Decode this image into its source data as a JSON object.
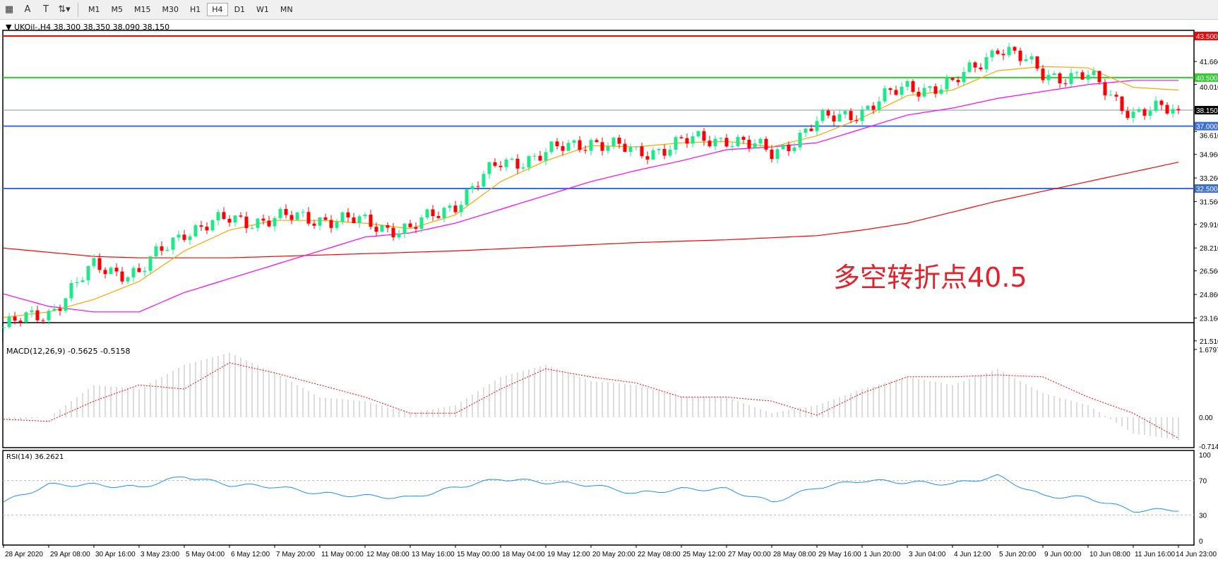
{
  "toolbar": {
    "tools": [
      {
        "icon": "grid-icon"
      },
      {
        "icon": "text-icon",
        "label": "A"
      },
      {
        "icon": "text-label-icon",
        "label": "T"
      },
      {
        "icon": "arrows-icon"
      }
    ],
    "timeframes": [
      "M1",
      "M5",
      "M15",
      "M30",
      "H1",
      "H4",
      "D1",
      "W1",
      "MN"
    ],
    "active_timeframe": "H4"
  },
  "header": {
    "symbol": "UKOil-,H4",
    "ohlc": "38.300 38.350 38.090 38.150"
  },
  "annotation": "多空转折点40.5",
  "macd": {
    "label": "MACD(12,26,9) -0.5625 -0.5158",
    "axis": [
      "1.6797",
      "0.00",
      "-0.7149"
    ]
  },
  "rsi": {
    "label": "RSI(14) 36.2621",
    "axis": [
      "100",
      "70",
      "30",
      "0"
    ]
  },
  "price_axis": [
    "41.660",
    "40.010",
    "36.610",
    "34.960",
    "33.260",
    "31.560",
    "29.910",
    "28.210",
    "26.560",
    "24.860",
    "23.160",
    "21.510"
  ],
  "levels": [
    {
      "value": 43.5,
      "label": "43.500",
      "color": "#ff0000"
    },
    {
      "value": 40.5,
      "label": "40.500",
      "color": "#33cc33"
    },
    {
      "value": 38.15,
      "label": "38.150",
      "color": "#8090a0",
      "current": true
    },
    {
      "value": 37.0,
      "label": "37.000",
      "color": "#3a6ee0"
    },
    {
      "value": 32.5,
      "label": "32.500",
      "color": "#3a6ee0"
    }
  ],
  "chart_data": {
    "type": "candlestick",
    "time_labels": [
      "28 Apr 2020",
      "29 Apr 08:00",
      "30 Apr 16:00",
      "3 May 23:00",
      "5 May 04:00",
      "6 May 12:00",
      "7 May 20:00",
      "11 May 00:00",
      "12 May 08:00",
      "13 May 16:00",
      "15 May 00:00",
      "18 May 04:00",
      "19 May 12:00",
      "20 May 20:00",
      "22 May 08:00",
      "25 May 12:00",
      "27 May 00:00",
      "28 May 08:00",
      "29 May 16:00",
      "1 Jun 20:00",
      "3 Jun 04:00",
      "4 Jun 12:00",
      "5 Jun 20:00",
      "9 Jun 00:00",
      "10 Jun 08:00",
      "11 Jun 16:00",
      "14 Jun 23:00"
    ],
    "price_range": [
      21.51,
      43.5
    ],
    "close_at_labels": [
      22.5,
      23.6,
      26.8,
      26.4,
      29.5,
      30.2,
      30.3,
      30.4,
      30.0,
      29.5,
      31.5,
      34.3,
      35.0,
      36.0,
      35.0,
      35.8,
      36.2,
      35.0,
      37.2,
      38.2,
      39.8,
      39.9,
      42.8,
      40.8,
      40.5,
      38.0,
      38.15
    ],
    "ma_lines": [
      {
        "color": "#ff0000",
        "values": [
          28.2,
          27.9,
          27.6,
          27.5,
          27.5,
          27.5,
          27.6,
          27.7,
          27.8,
          27.9,
          28.0,
          28.15,
          28.3,
          28.45,
          28.6,
          28.7,
          28.8,
          28.95,
          29.1,
          29.5,
          30.0,
          30.8,
          31.6,
          32.3,
          33.0,
          33.7,
          34.4
        ]
      },
      {
        "color": "#ff00ff",
        "values": [
          24.9,
          24.0,
          23.6,
          23.6,
          25.0,
          26.0,
          27.0,
          28.0,
          29.0,
          29.3,
          30.0,
          31.0,
          32.0,
          33.0,
          33.8,
          34.5,
          35.3,
          35.5,
          35.8,
          36.8,
          37.8,
          38.3,
          39.0,
          39.5,
          40.0,
          40.3,
          40.3
        ]
      },
      {
        "color": "#ffa500",
        "values": [
          23.2,
          23.6,
          24.5,
          25.8,
          28.0,
          29.5,
          30.2,
          30.2,
          30.0,
          29.6,
          30.6,
          33.0,
          34.5,
          35.6,
          35.5,
          35.8,
          35.9,
          35.5,
          36.3,
          37.6,
          39.2,
          39.6,
          41.0,
          41.3,
          41.2,
          39.8,
          39.6
        ]
      }
    ],
    "macd_hist": [
      -0.1,
      0.0,
      0.8,
      0.7,
      1.3,
      1.6,
      1.1,
      0.5,
      0.4,
      0.1,
      0.3,
      1.0,
      1.3,
      0.9,
      0.8,
      0.5,
      0.5,
      0.1,
      0.3,
      0.7,
      1.0,
      0.8,
      1.2,
      0.6,
      0.3,
      -0.4,
      -0.56
    ],
    "macd_signal": [
      -0.05,
      -0.1,
      0.4,
      0.8,
      0.7,
      1.35,
      1.1,
      0.8,
      0.5,
      0.1,
      0.1,
      0.7,
      1.2,
      1.0,
      0.85,
      0.5,
      0.5,
      0.4,
      0.05,
      0.6,
      1.0,
      1.0,
      1.05,
      1.0,
      0.5,
      0.1,
      -0.52
    ],
    "macd_range": [
      -0.7149,
      1.6797
    ],
    "rsi_values": [
      45,
      65,
      65,
      62,
      75,
      65,
      63,
      55,
      52,
      50,
      62,
      72,
      68,
      65,
      55,
      60,
      60,
      45,
      62,
      70,
      68,
      66,
      75,
      52,
      50,
      35,
      36.26
    ],
    "rsi_levels": [
      30,
      70
    ],
    "colors": {
      "bull": "#1ee88a",
      "bear": "#ff0000",
      "macd_hist": "#bbbbbb",
      "macd_signal": "#ff0000",
      "rsi": "#1e90ff"
    }
  }
}
